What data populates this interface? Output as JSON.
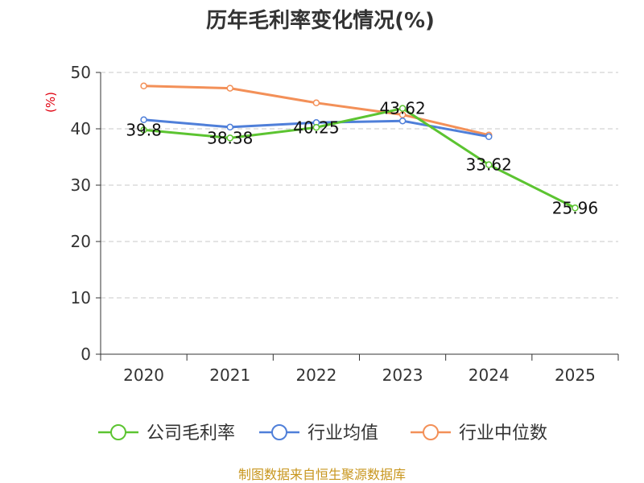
{
  "chart_data": {
    "type": "line",
    "title": "历年毛利率变化情况(%)",
    "xlabel": "",
    "ylabel": "(%)",
    "categories": [
      "2020",
      "2021",
      "2022",
      "2023",
      "2024",
      "2025"
    ],
    "ylim": [
      0,
      50
    ],
    "yticks": [
      0,
      10,
      20,
      30,
      40,
      50
    ],
    "grid": true,
    "legend_position": "bottom",
    "series": [
      {
        "name": "公司毛利率",
        "color": "#5cc431",
        "values": [
          39.8,
          38.38,
          40.25,
          43.62,
          33.62,
          25.96
        ],
        "labels": [
          "39.8",
          "38.38",
          "40.25",
          "43.62",
          "33.62",
          "25.96"
        ]
      },
      {
        "name": "行业均值",
        "color": "#4f7fd9",
        "values": [
          41.6,
          40.3,
          41.1,
          41.4,
          38.6,
          null
        ]
      },
      {
        "name": "行业中位数",
        "color": "#f39058",
        "values": [
          47.6,
          47.2,
          44.6,
          42.5,
          38.9,
          null
        ]
      }
    ]
  },
  "source": "制图数据来自恒生聚源数据库"
}
